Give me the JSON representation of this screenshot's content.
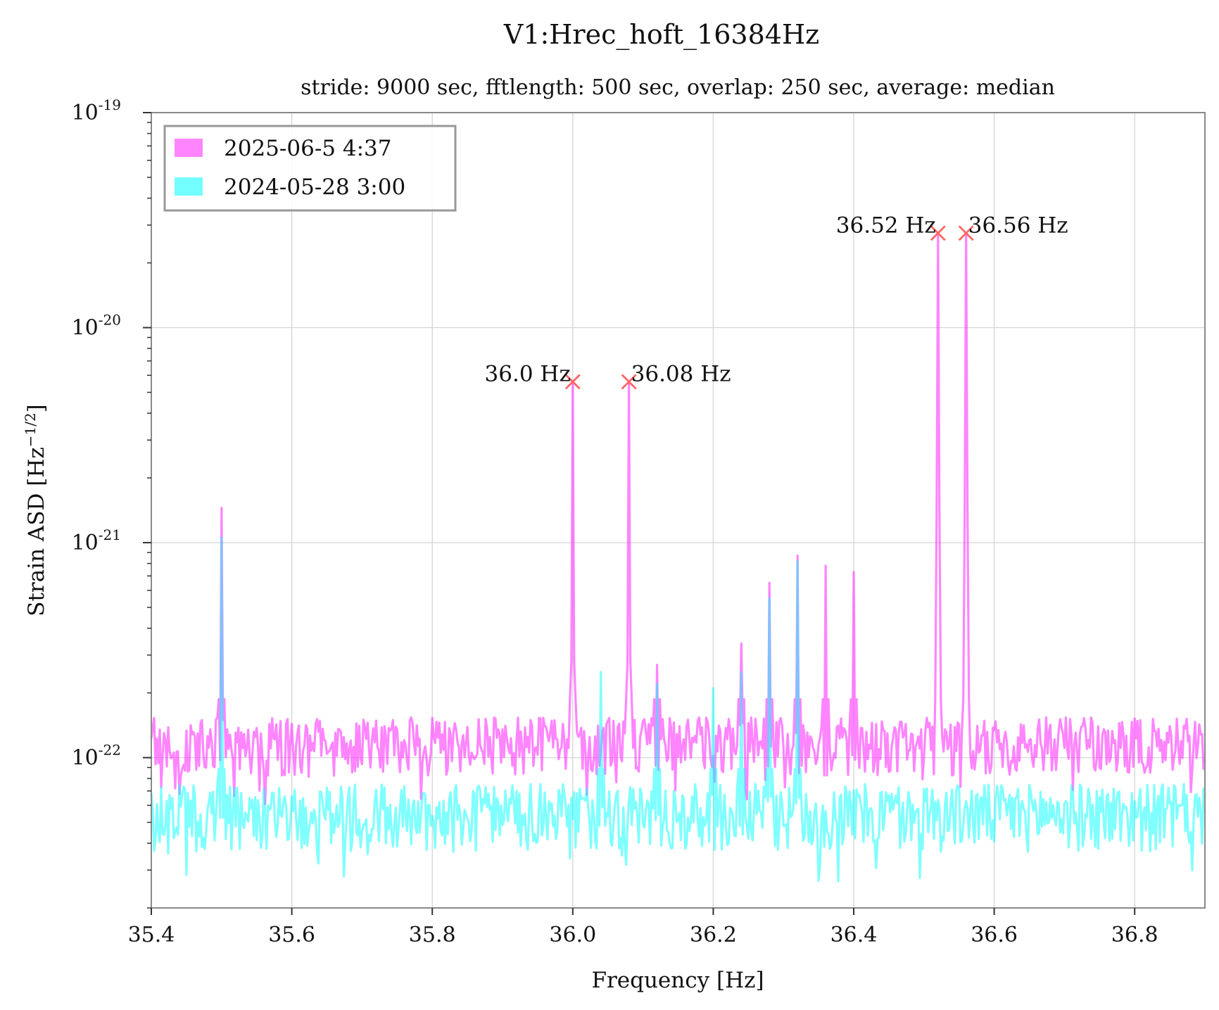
{
  "chart_data": {
    "type": "line",
    "title": "V1:Hrec_hoft_16384Hz",
    "subtitle": "stride: 9000 sec, fftlength: 500 sec, overlap: 250 sec, average: median",
    "xlabel": "Frequency [Hz]",
    "ylabel_main": "Strain ASD [Hz",
    "ylabel_exp": "−1/2",
    "ylabel_end": "]",
    "xlim": [
      35.4,
      36.9
    ],
    "ylim": [
      2e-23,
      1e-19
    ],
    "yscale": "log",
    "grid": true,
    "legend_position": "upper-left",
    "x_ticks": [
      "35.4",
      "35.6",
      "35.8",
      "36.0",
      "36.2",
      "36.4",
      "36.6",
      "36.8"
    ],
    "x_tick_values": [
      35.4,
      35.6,
      35.8,
      36.0,
      36.2,
      36.4,
      36.6,
      36.8
    ],
    "y_ticks": [
      {
        "base": "10",
        "exp": "-19",
        "value": 1e-19
      },
      {
        "base": "10",
        "exp": "-20",
        "value": 1e-20
      },
      {
        "base": "10",
        "exp": "-21",
        "value": 1e-21
      },
      {
        "base": "10",
        "exp": "-22",
        "value": 1e-22
      }
    ],
    "series": [
      {
        "name": "2025-06-5 4:37",
        "color": "#ff44ff",
        "baseline": 1.1e-22,
        "noise_low": 0.75,
        "noise_high": 1.4,
        "peaks": [
          {
            "x": 35.5,
            "y": 1.45e-21
          },
          {
            "x": 36.0,
            "y": 5.6e-21
          },
          {
            "x": 36.08,
            "y": 5.6e-21
          },
          {
            "x": 36.12,
            "y": 2.7e-22
          },
          {
            "x": 36.24,
            "y": 3.4e-22
          },
          {
            "x": 36.28,
            "y": 6.5e-22
          },
          {
            "x": 36.32,
            "y": 8.7e-22
          },
          {
            "x": 36.36,
            "y": 7.8e-22
          },
          {
            "x": 36.4,
            "y": 7.3e-22
          },
          {
            "x": 36.52,
            "y": 2.75e-20
          },
          {
            "x": 36.56,
            "y": 2.75e-20
          }
        ]
      },
      {
        "name": "2024-05-28 3:00",
        "color": "#00ffff",
        "baseline": 5.2e-23,
        "noise_low": 0.7,
        "noise_high": 1.45,
        "peaks": [
          {
            "x": 35.5,
            "y": 1.05e-21
          },
          {
            "x": 36.04,
            "y": 2.5e-22
          },
          {
            "x": 36.12,
            "y": 2.2e-22
          },
          {
            "x": 36.2,
            "y": 2.1e-22
          },
          {
            "x": 36.24,
            "y": 2.5e-22
          },
          {
            "x": 36.28,
            "y": 5.5e-22
          },
          {
            "x": 36.32,
            "y": 8.2e-22
          }
        ]
      }
    ],
    "annotations": [
      {
        "text": "36.0 Hz",
        "x": 36.0,
        "y": 5.6e-21,
        "side": "left"
      },
      {
        "text": "36.08 Hz",
        "x": 36.08,
        "y": 5.6e-21,
        "side": "right"
      },
      {
        "text": "36.52 Hz",
        "x": 36.52,
        "y": 2.75e-20,
        "side": "left"
      },
      {
        "text": "36.56 Hz",
        "x": 36.56,
        "y": 2.75e-20,
        "side": "right"
      }
    ],
    "marker_color": "#ff6666"
  }
}
